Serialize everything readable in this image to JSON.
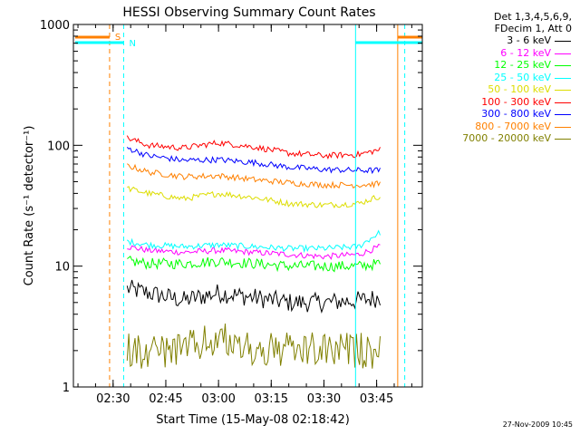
{
  "chart_data": {
    "type": "line",
    "title": "HESSI Observing Summary Count Rates",
    "xlabel": "Start Time (15-May-08 02:18:42)",
    "ylabel": "Count Rate (s⁻¹ detector⁻¹)",
    "y_scale": "log",
    "ylim": [
      1,
      1000
    ],
    "xlim": [
      "02:18:42",
      "03:58:00"
    ],
    "x_ticks": [
      "02:30",
      "02:45",
      "03:00",
      "03:15",
      "03:30",
      "03:45"
    ],
    "y_ticks": [
      "1",
      "10",
      "100",
      "1000"
    ],
    "grid": false,
    "legend_position": "right",
    "legend_header": [
      "Det 1,3,4,5,6,9,",
      "FDecim 1, Att 0"
    ],
    "series": [
      {
        "name": "3 - 6 keV",
        "color": "#000000",
        "x": [
          "02:34",
          "02:40",
          "02:50",
          "03:00",
          "03:10",
          "03:20",
          "03:30",
          "03:40",
          "03:46"
        ],
        "y": [
          6.5,
          6.0,
          5.2,
          6.0,
          5.5,
          5.0,
          5.0,
          5.2,
          5.5
        ]
      },
      {
        "name": "6 - 12 keV",
        "color": "#ff00ff",
        "x": [
          "02:34",
          "02:40",
          "02:50",
          "03:00",
          "03:10",
          "03:20",
          "03:30",
          "03:40",
          "03:46"
        ],
        "y": [
          14.5,
          13.5,
          13.0,
          13.5,
          13.0,
          12.5,
          12.0,
          12.5,
          14.5
        ]
      },
      {
        "name": "12 - 25 keV",
        "color": "#00ff00",
        "x": [
          "02:34",
          "02:40",
          "02:50",
          "03:00",
          "03:10",
          "03:20",
          "03:30",
          "03:40",
          "03:46"
        ],
        "y": [
          11.0,
          10.5,
          10.5,
          11.0,
          10.5,
          10.0,
          10.0,
          10.0,
          10.5
        ]
      },
      {
        "name": "25 - 50 keV",
        "color": "#00ffff",
        "x": [
          "02:34",
          "02:40",
          "02:50",
          "03:00",
          "03:10",
          "03:20",
          "03:30",
          "03:40",
          "03:46"
        ],
        "y": [
          16.0,
          15.0,
          14.5,
          15.0,
          14.5,
          14.0,
          14.0,
          14.5,
          19.0
        ]
      },
      {
        "name": "50 - 100 keV",
        "color": "#dddd00",
        "x": [
          "02:34",
          "02:40",
          "02:50",
          "03:00",
          "03:10",
          "03:20",
          "03:30",
          "03:40",
          "03:46"
        ],
        "y": [
          44,
          40,
          36,
          40,
          37,
          33,
          32,
          33,
          38
        ]
      },
      {
        "name": "100 - 300 keV",
        "color": "#ff0000",
        "x": [
          "02:34",
          "02:40",
          "02:50",
          "03:00",
          "03:10",
          "03:20",
          "03:30",
          "03:40",
          "03:46"
        ],
        "y": [
          115,
          100,
          95,
          105,
          97,
          86,
          82,
          84,
          92
        ]
      },
      {
        "name": "300 - 800 keV",
        "color": "#0000ff",
        "x": [
          "02:34",
          "02:40",
          "02:50",
          "03:00",
          "03:10",
          "03:20",
          "03:30",
          "03:40",
          "03:46"
        ],
        "y": [
          95,
          82,
          75,
          76,
          72,
          66,
          63,
          62,
          62
        ]
      },
      {
        "name": "800 - 7000 keV",
        "color": "#ff8000",
        "x": [
          "02:34",
          "02:40",
          "02:50",
          "03:00",
          "03:10",
          "03:20",
          "03:30",
          "03:40",
          "03:46"
        ],
        "y": [
          68,
          60,
          55,
          56,
          52,
          49,
          47,
          47,
          48
        ]
      },
      {
        "name": "7000 - 20000 keV",
        "color": "#808000",
        "x": [
          "02:34",
          "02:40",
          "02:50",
          "03:00",
          "03:10",
          "03:20",
          "03:30",
          "03:40",
          "03:46"
        ],
        "y": [
          2.0,
          2.0,
          2.0,
          2.5,
          2.0,
          2.0,
          2.0,
          2.0,
          2.0
        ]
      }
    ],
    "annotations": [
      {
        "text": "S",
        "color": "#ff8000"
      },
      {
        "text": "N",
        "color": "#00ffff"
      }
    ],
    "footer": "27-Nov-2009 10:45"
  }
}
